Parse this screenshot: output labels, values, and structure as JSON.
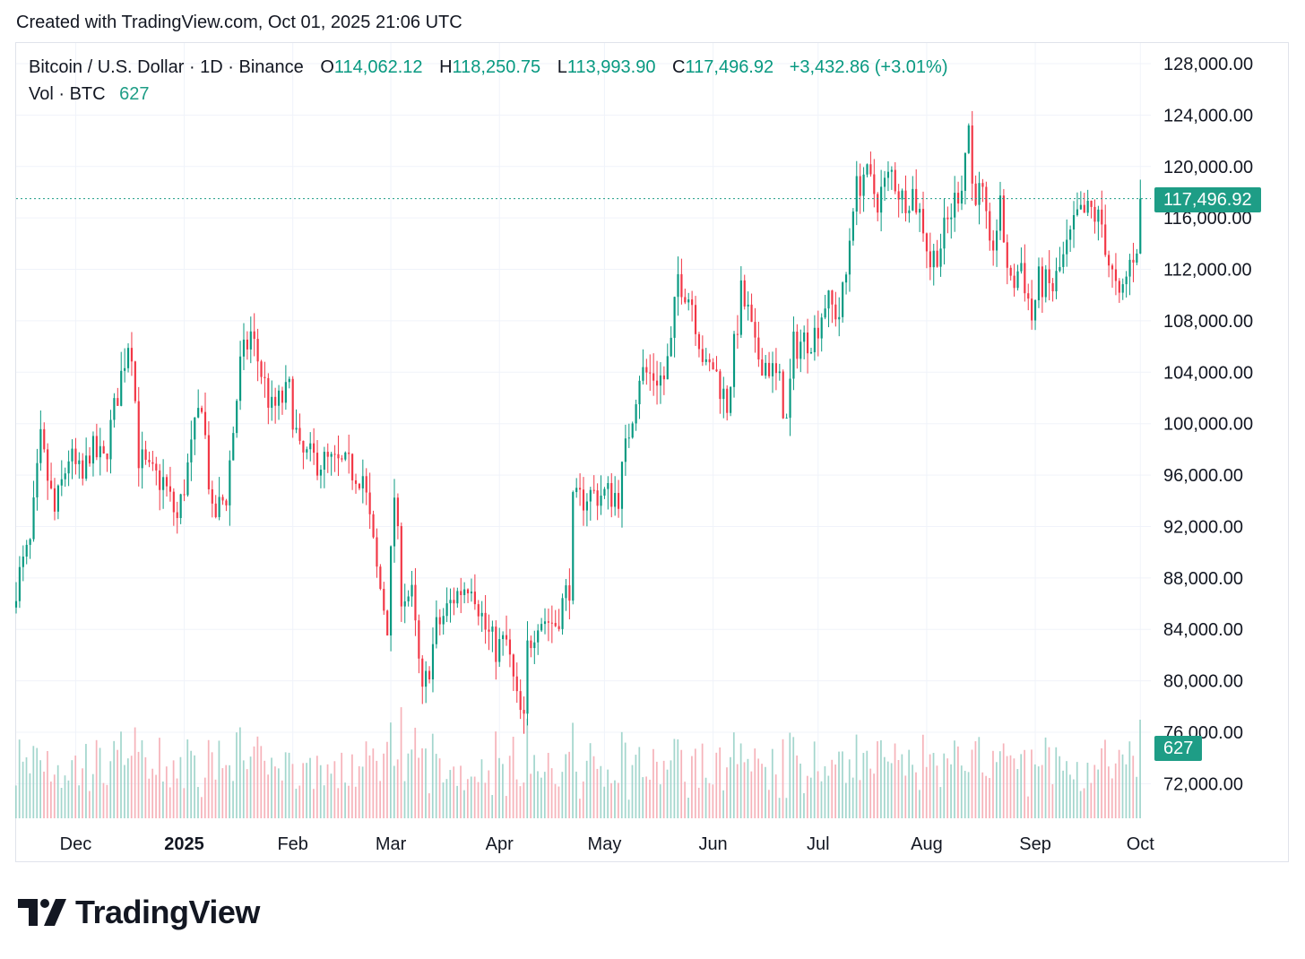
{
  "header": {
    "created": "Created with TradingView.com, Oct 01, 2025 21:06 UTC"
  },
  "legend": {
    "symbol": "Bitcoin / U.S. Dollar · 1D · Binance",
    "o_label": "O",
    "o_value": "114,062.12",
    "h_label": "H",
    "h_value": "118,250.75",
    "l_label": "L",
    "l_value": "113,993.90",
    "c_label": "C",
    "c_value": "117,496.92",
    "change": "+3,432.86 (+3.01%)",
    "vol_label": "Vol · BTC",
    "vol_value": "627"
  },
  "badges": {
    "price": "117,496.92",
    "volume": "627"
  },
  "brand": {
    "name": "TradingView",
    "logo_icon": "tradingview-logo-icon"
  },
  "colors": {
    "up": "#089981",
    "down": "#f23645",
    "badge": "#1e9d86",
    "grid": "#f0f3fa"
  },
  "chart_data": {
    "type": "candlestick",
    "symbol": "Bitcoin / U.S. Dollar",
    "interval": "1D",
    "exchange": "Binance",
    "ylim": [
      69000,
      131000
    ],
    "y_ticks": [
      "72,000.00",
      "76,000.00",
      "80,000.00",
      "84,000.00",
      "88,000.00",
      "92,000.00",
      "96,000.00",
      "100,000.00",
      "104,000.00",
      "108,000.00",
      "112,000.00",
      "116,000.00",
      "120,000.00",
      "124,000.00",
      "128,000.00"
    ],
    "y_tick_values": [
      72000,
      76000,
      80000,
      84000,
      88000,
      92000,
      96000,
      100000,
      104000,
      108000,
      112000,
      116000,
      120000,
      124000,
      128000
    ],
    "x_range": [
      "2024-11-14",
      "2025-10-04"
    ],
    "x_ticks": [
      {
        "label": "Dec",
        "date": "2024-12-01",
        "bold": false
      },
      {
        "label": "2025",
        "date": "2025-01-01",
        "bold": true
      },
      {
        "label": "Feb",
        "date": "2025-02-01",
        "bold": false
      },
      {
        "label": "Mar",
        "date": "2025-03-01",
        "bold": false
      },
      {
        "label": "Apr",
        "date": "2025-04-01",
        "bold": false
      },
      {
        "label": "May",
        "date": "2025-05-01",
        "bold": false
      },
      {
        "label": "Jun",
        "date": "2025-06-01",
        "bold": false
      },
      {
        "label": "Jul",
        "date": "2025-07-01",
        "bold": false
      },
      {
        "label": "Aug",
        "date": "2025-08-01",
        "bold": false
      },
      {
        "label": "Sep",
        "date": "2025-09-01",
        "bold": false
      },
      {
        "label": "Oct",
        "date": "2025-10-01",
        "bold": false
      }
    ],
    "last_close": 117496.92,
    "last_volume": 627,
    "close_anchors": [
      [
        "2024-11-14",
        87500
      ],
      [
        "2024-11-18",
        90500
      ],
      [
        "2024-11-21",
        98500
      ],
      [
        "2024-11-25",
        93000
      ],
      [
        "2024-11-29",
        97500
      ],
      [
        "2024-12-03",
        95500
      ],
      [
        "2024-12-05",
        98000
      ],
      [
        "2024-12-09",
        97000
      ],
      [
        "2024-12-12",
        101000
      ],
      [
        "2024-12-16",
        106500
      ],
      [
        "2024-12-17",
        106000
      ],
      [
        "2024-12-19",
        97500
      ],
      [
        "2024-12-22",
        96000
      ],
      [
        "2024-12-26",
        95500
      ],
      [
        "2024-12-30",
        92500
      ],
      [
        "2025-01-06",
        102000
      ],
      [
        "2025-01-09",
        92500
      ],
      [
        "2025-01-13",
        94500
      ],
      [
        "2025-01-17",
        104500
      ],
      [
        "2025-01-20",
        107000
      ],
      [
        "2025-01-26",
        101000
      ],
      [
        "2025-01-31",
        102500
      ],
      [
        "2025-02-03",
        97500
      ],
      [
        "2025-02-10",
        97000
      ],
      [
        "2025-02-17",
        96500
      ],
      [
        "2025-02-21",
        96000
      ],
      [
        "2025-02-25",
        88500
      ],
      [
        "2025-02-28",
        84500
      ],
      [
        "2025-03-02",
        94500
      ],
      [
        "2025-03-04",
        87000
      ],
      [
        "2025-03-07",
        86500
      ],
      [
        "2025-03-10",
        78600
      ],
      [
        "2025-03-14",
        84000
      ],
      [
        "2025-03-19",
        86500
      ],
      [
        "2025-03-24",
        88000
      ],
      [
        "2025-03-28",
        84000
      ],
      [
        "2025-03-31",
        82500
      ],
      [
        "2025-04-03",
        83000
      ],
      [
        "2025-04-06",
        78300
      ],
      [
        "2025-04-08",
        76500
      ],
      [
        "2025-04-09",
        82500
      ],
      [
        "2025-04-12",
        85000
      ],
      [
        "2025-04-17",
        84500
      ],
      [
        "2025-04-21",
        87500
      ],
      [
        "2025-04-22",
        93500
      ],
      [
        "2025-04-26",
        94500
      ],
      [
        "2025-04-30",
        94500
      ],
      [
        "2025-05-05",
        94500
      ],
      [
        "2025-05-08",
        99500
      ],
      [
        "2025-05-11",
        104000
      ],
      [
        "2025-05-18",
        103500
      ],
      [
        "2025-05-20",
        106000
      ],
      [
        "2025-05-22",
        111500
      ],
      [
        "2025-05-26",
        109500
      ],
      [
        "2025-05-30",
        104000
      ],
      [
        "2025-06-01",
        104500
      ],
      [
        "2025-06-05",
        101500
      ],
      [
        "2025-06-09",
        110000
      ],
      [
        "2025-06-11",
        108500
      ],
      [
        "2025-06-13",
        105500
      ],
      [
        "2025-06-17",
        104500
      ],
      [
        "2025-06-20",
        103000
      ],
      [
        "2025-06-22",
        100000
      ],
      [
        "2025-06-24",
        106000
      ],
      [
        "2025-06-30",
        107000
      ],
      [
        "2025-07-03",
        109500
      ],
      [
        "2025-07-07",
        108500
      ],
      [
        "2025-07-09",
        111500
      ],
      [
        "2025-07-11",
        117500
      ],
      [
        "2025-07-14",
        119500
      ],
      [
        "2025-07-18",
        117500
      ],
      [
        "2025-07-22",
        119500
      ],
      [
        "2025-07-25",
        117500
      ],
      [
        "2025-07-28",
        118000
      ],
      [
        "2025-07-31",
        115500
      ],
      [
        "2025-08-02",
        112500
      ],
      [
        "2025-08-05",
        114000
      ],
      [
        "2025-08-08",
        116500
      ],
      [
        "2025-08-11",
        119000
      ],
      [
        "2025-08-13",
        123300
      ],
      [
        "2025-08-14",
        118500
      ],
      [
        "2025-08-17",
        117500
      ],
      [
        "2025-08-19",
        113000
      ],
      [
        "2025-08-22",
        116500
      ],
      [
        "2025-08-25",
        110500
      ],
      [
        "2025-08-28",
        112500
      ],
      [
        "2025-08-31",
        108200
      ],
      [
        "2025-09-02",
        111000
      ],
      [
        "2025-09-06",
        110500
      ],
      [
        "2025-09-10",
        113500
      ],
      [
        "2025-09-13",
        116000
      ],
      [
        "2025-09-17",
        116500
      ],
      [
        "2025-09-20",
        115500
      ],
      [
        "2025-09-22",
        112600
      ],
      [
        "2025-09-25",
        109200
      ],
      [
        "2025-09-28",
        112500
      ],
      [
        "2025-09-30",
        114062
      ],
      [
        "2025-10-01",
        117497
      ]
    ]
  }
}
